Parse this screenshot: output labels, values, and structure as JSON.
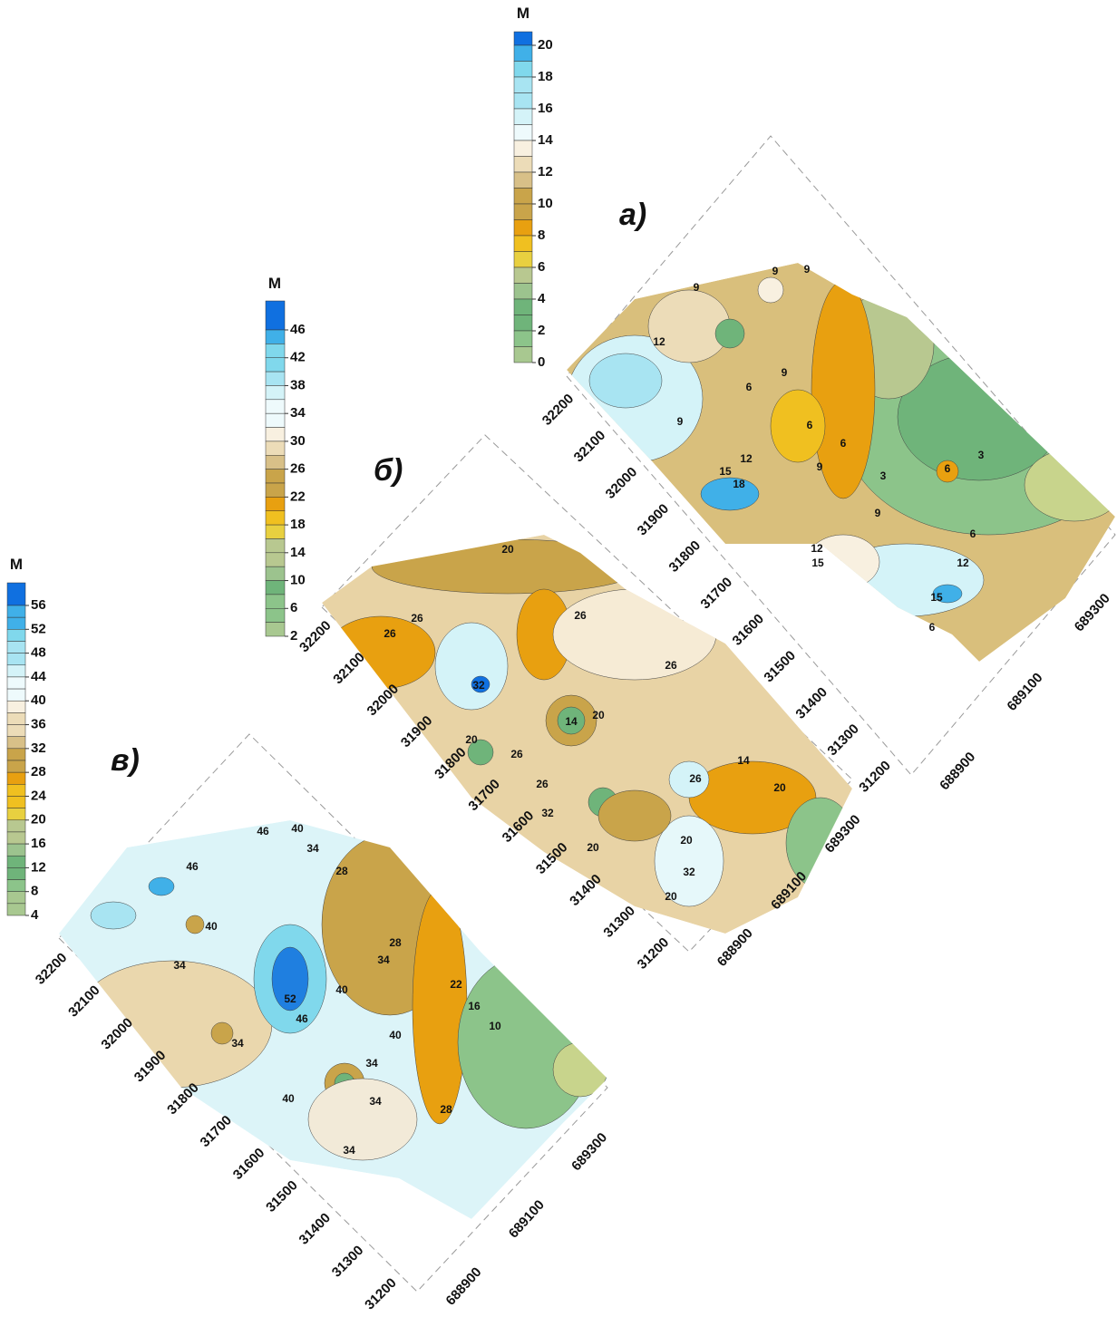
{
  "panels": [
    {
      "label": "а)",
      "legend": {
        "title": "М",
        "ticks": [
          20,
          18,
          16,
          14,
          12,
          10,
          8,
          6,
          4,
          2,
          0
        ]
      },
      "y_axis": [
        32200,
        32100,
        32000,
        31900,
        31800,
        31700,
        31600,
        31500,
        31400,
        31300,
        31200
      ],
      "x_axis": [
        688900,
        689100,
        689300
      ],
      "contour_labels": [
        9,
        9,
        9,
        12,
        9,
        6,
        9,
        6,
        6,
        12,
        15,
        18,
        9,
        3,
        6,
        3,
        9,
        6,
        12,
        15,
        12,
        15,
        6
      ]
    },
    {
      "label": "б)",
      "legend": {
        "title": "М",
        "ticks": [
          46,
          42,
          38,
          34,
          30,
          26,
          22,
          18,
          14,
          10,
          6,
          2
        ]
      },
      "y_axis": [
        32200,
        32100,
        32000,
        31900,
        31800,
        31700,
        31600,
        31500,
        31400,
        31300,
        31200
      ],
      "x_axis": [
        688900,
        689100,
        689300
      ],
      "contour_labels": [
        20,
        26,
        26,
        26,
        26,
        32,
        14,
        20,
        20,
        26,
        26,
        14,
        20,
        26,
        32,
        20,
        20,
        32,
        20
      ]
    },
    {
      "label": "в)",
      "legend": {
        "title": "М",
        "ticks": [
          56,
          52,
          48,
          44,
          40,
          36,
          32,
          28,
          24,
          20,
          16,
          12,
          8,
          4
        ]
      },
      "y_axis": [
        32200,
        32100,
        32000,
        31900,
        31800,
        31700,
        31600,
        31500,
        31400,
        31300,
        31200
      ],
      "x_axis": [
        688900,
        689100,
        689300
      ],
      "contour_labels": [
        46,
        40,
        34,
        46,
        28,
        40,
        34,
        28,
        34,
        52,
        40,
        46,
        22,
        16,
        10,
        40,
        34,
        34,
        40,
        34,
        28,
        34
      ]
    }
  ]
}
